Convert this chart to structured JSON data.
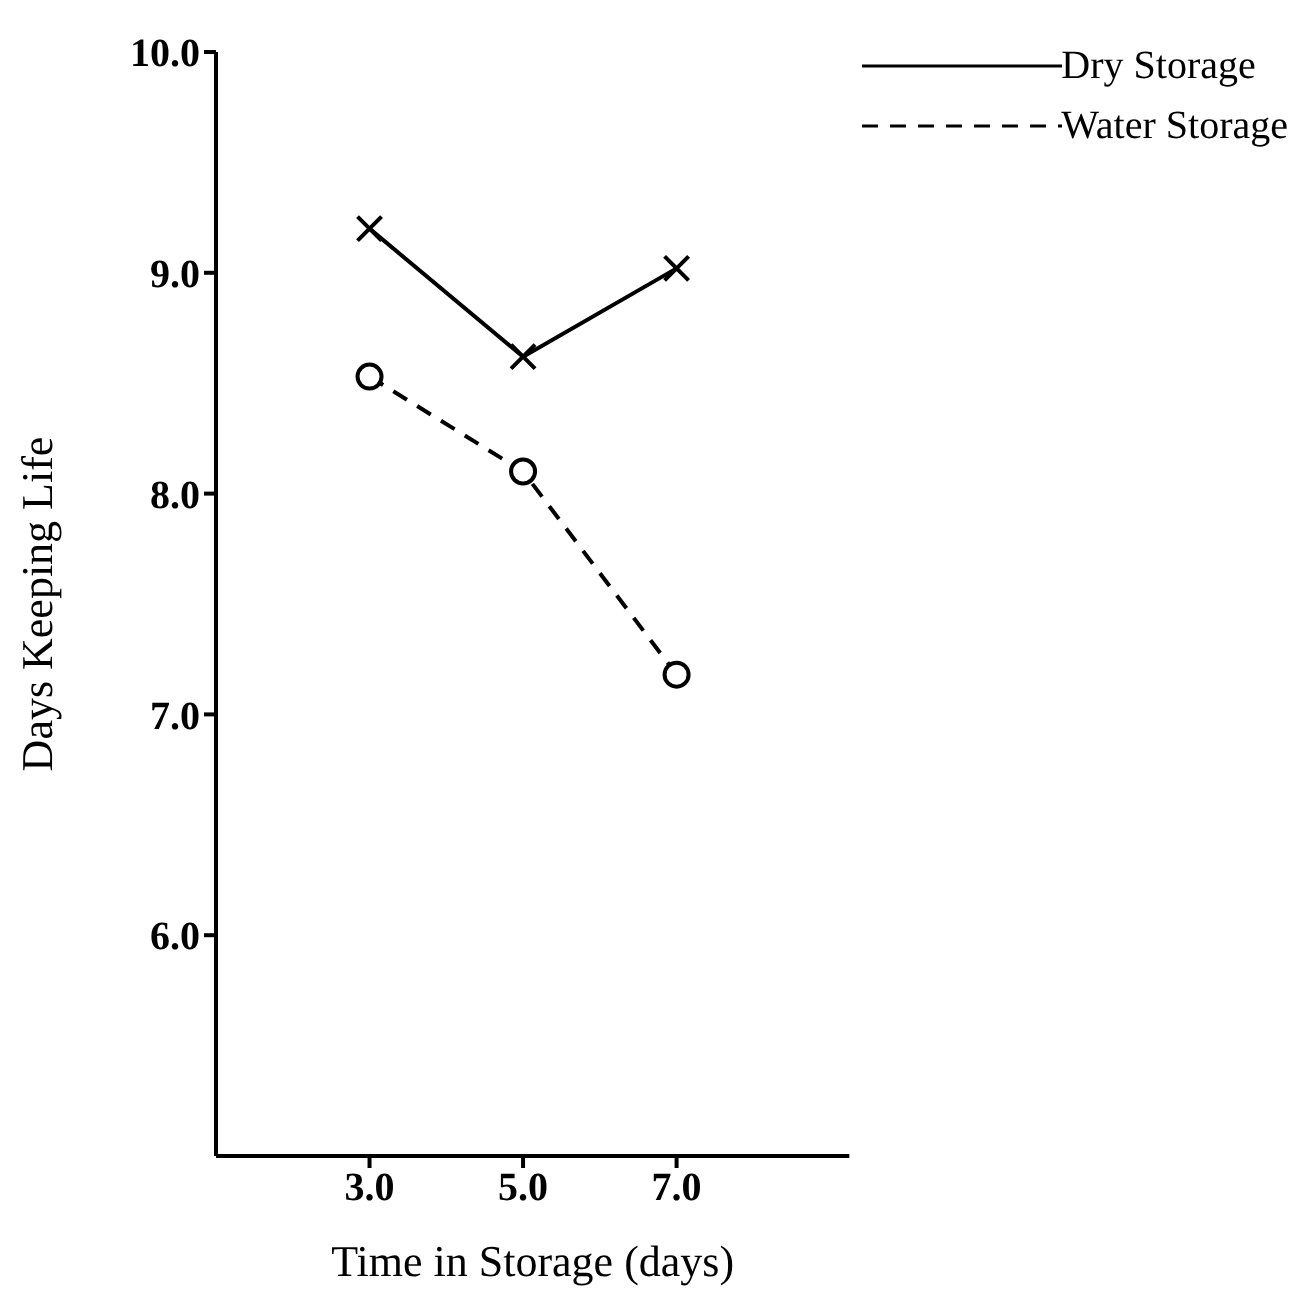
{
  "chart_data": {
    "type": "line",
    "xlabel": "Time in Storage (days)",
    "ylabel": "Days Keeping Life",
    "x": [
      3,
      5,
      7
    ],
    "series": [
      {
        "name": "Dry Storage",
        "color": "#000000",
        "values": [
          9.2,
          8.62,
          9.02
        ],
        "marker": "cross",
        "line_style": "solid"
      },
      {
        "name": "Water Storage",
        "color": "#000000",
        "values": [
          8.53,
          8.1,
          7.18
        ],
        "marker": "circle",
        "line_style": "dashed"
      }
    ],
    "xlim": [
      1,
      9.25
    ],
    "xticks": [
      {
        "value": 3,
        "label": "3.0"
      },
      {
        "value": 5,
        "label": "5.0"
      },
      {
        "value": 7,
        "label": "7.0"
      }
    ],
    "ylim": [
      5,
      10
    ],
    "yticks": [
      {
        "value": 6,
        "label": "6.0"
      },
      {
        "value": 7,
        "label": "7.0"
      },
      {
        "value": 8,
        "label": "8.0"
      },
      {
        "value": 9,
        "label": "9.0"
      },
      {
        "value": 10,
        "label": "10.0"
      }
    ],
    "grid": false,
    "legend": "top right"
  }
}
